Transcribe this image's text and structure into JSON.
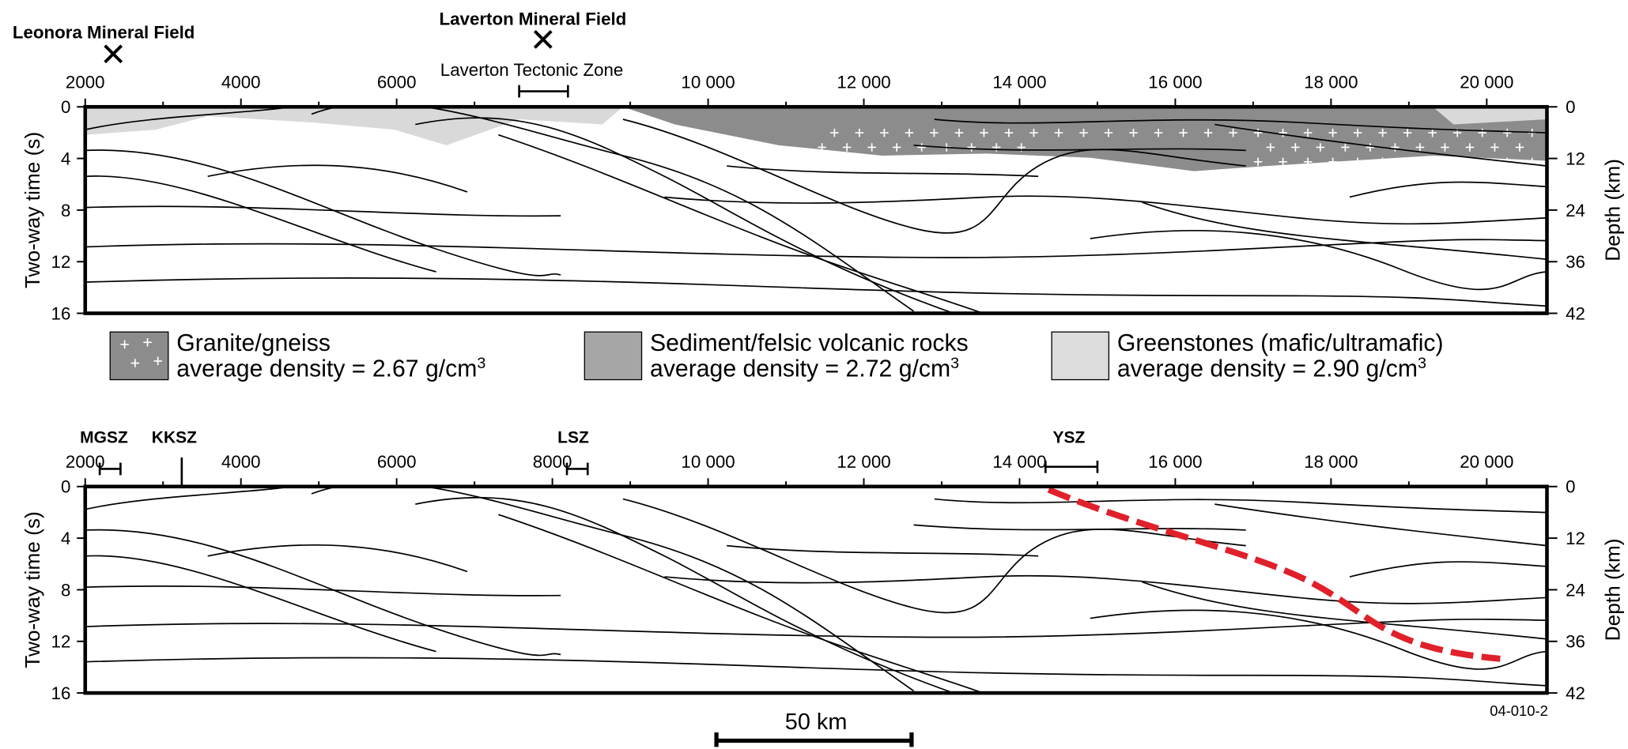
{
  "top_panel": {
    "labels": [
      "Leonora Mineral Field",
      "Laverton Mineral Field",
      "Laverton Tectonic Zone"
    ],
    "x_ticks": [
      "2000",
      "4000",
      "6000",
      "10 000",
      "12 000",
      "14 000",
      "16 000",
      "18 000",
      "20 000"
    ],
    "y_label": "Two-way time (s)",
    "y_ticks": [
      "0",
      "4",
      "8",
      "12",
      "16"
    ],
    "y2_label": "Depth (km)",
    "y2_ticks": [
      "0",
      "12",
      "24",
      "36",
      "42"
    ]
  },
  "legend": [
    {
      "name": "Granite/gneiss",
      "note": "average density = 2.67 g/cm",
      "sup": "3"
    },
    {
      "name": "Sediment/felsic volcanic rocks",
      "note": "average density = 2.72 g/cm",
      "sup": "3"
    },
    {
      "name": "Greenstones (mafic/ultramafic)",
      "note": "average density = 2.90 g/cm",
      "sup": "3"
    }
  ],
  "bottom_panel": {
    "zones": [
      "MGSZ",
      "KKSZ",
      "LSZ",
      "YSZ"
    ],
    "x_ticks": [
      "2000",
      "4000",
      "6000",
      "8000",
      "10 000",
      "12 000",
      "14 000",
      "16 000",
      "18 000",
      "20 000"
    ],
    "y_label": "Two-way time (s)",
    "y_ticks": [
      "0",
      "4",
      "8",
      "12",
      "16"
    ],
    "y2_label": "Depth (km)",
    "y2_ticks": [
      "0",
      "12",
      "24",
      "36",
      "42"
    ],
    "code": "04-010-2"
  },
  "scale_bar": "50 km"
}
